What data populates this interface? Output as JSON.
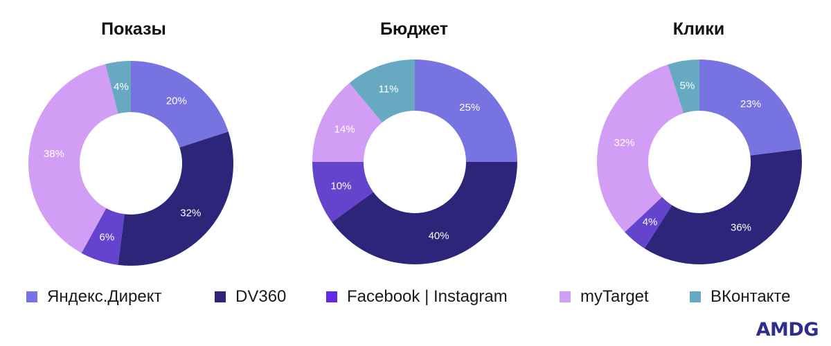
{
  "colors": {
    "yandex": "#7773e0",
    "dv360": "#2c2579",
    "facebook": "#6444cc",
    "mytarget": "#d29ef5",
    "vk": "#66a9c0"
  },
  "legend": [
    {
      "label": "Яндекс.Директ",
      "color": "#7773e0"
    },
    {
      "label": "DV360",
      "color": "#2c2579"
    },
    {
      "label": "Facebook | Instagram",
      "color": "#5f2be8"
    },
    {
      "label": "myTarget",
      "color": "#d29ef5"
    },
    {
      "label": "ВКонтакте",
      "color": "#66a9c0"
    }
  ],
  "chart_data": [
    {
      "type": "pie",
      "title": "Показы",
      "categories": [
        "Яндекс.Директ",
        "DV360",
        "Facebook | Instagram",
        "myTarget",
        "ВКонтакте"
      ],
      "values": [
        20,
        32,
        6,
        38,
        4
      ],
      "labels": [
        "20%",
        "32%",
        "6%",
        "38%",
        "4%"
      ]
    },
    {
      "type": "pie",
      "title": "Бюджет",
      "categories": [
        "Яндекс.Директ",
        "DV360",
        "Facebook | Instagram",
        "myTarget",
        "ВКонтакте"
      ],
      "values": [
        25,
        40,
        10,
        14,
        11
      ],
      "labels": [
        "25%",
        "40%",
        "10%",
        "14%",
        "11%"
      ]
    },
    {
      "type": "pie",
      "title": "Клики",
      "categories": [
        "Яндекс.Директ",
        "DV360",
        "Facebook | Instagram",
        "myTarget",
        "ВКонтакте"
      ],
      "values": [
        23,
        36,
        4,
        32,
        5
      ],
      "labels": [
        "23%",
        "36%",
        "4%",
        "32%",
        "5%"
      ]
    }
  ],
  "brand": {
    "logo_text": "AMDG"
  }
}
